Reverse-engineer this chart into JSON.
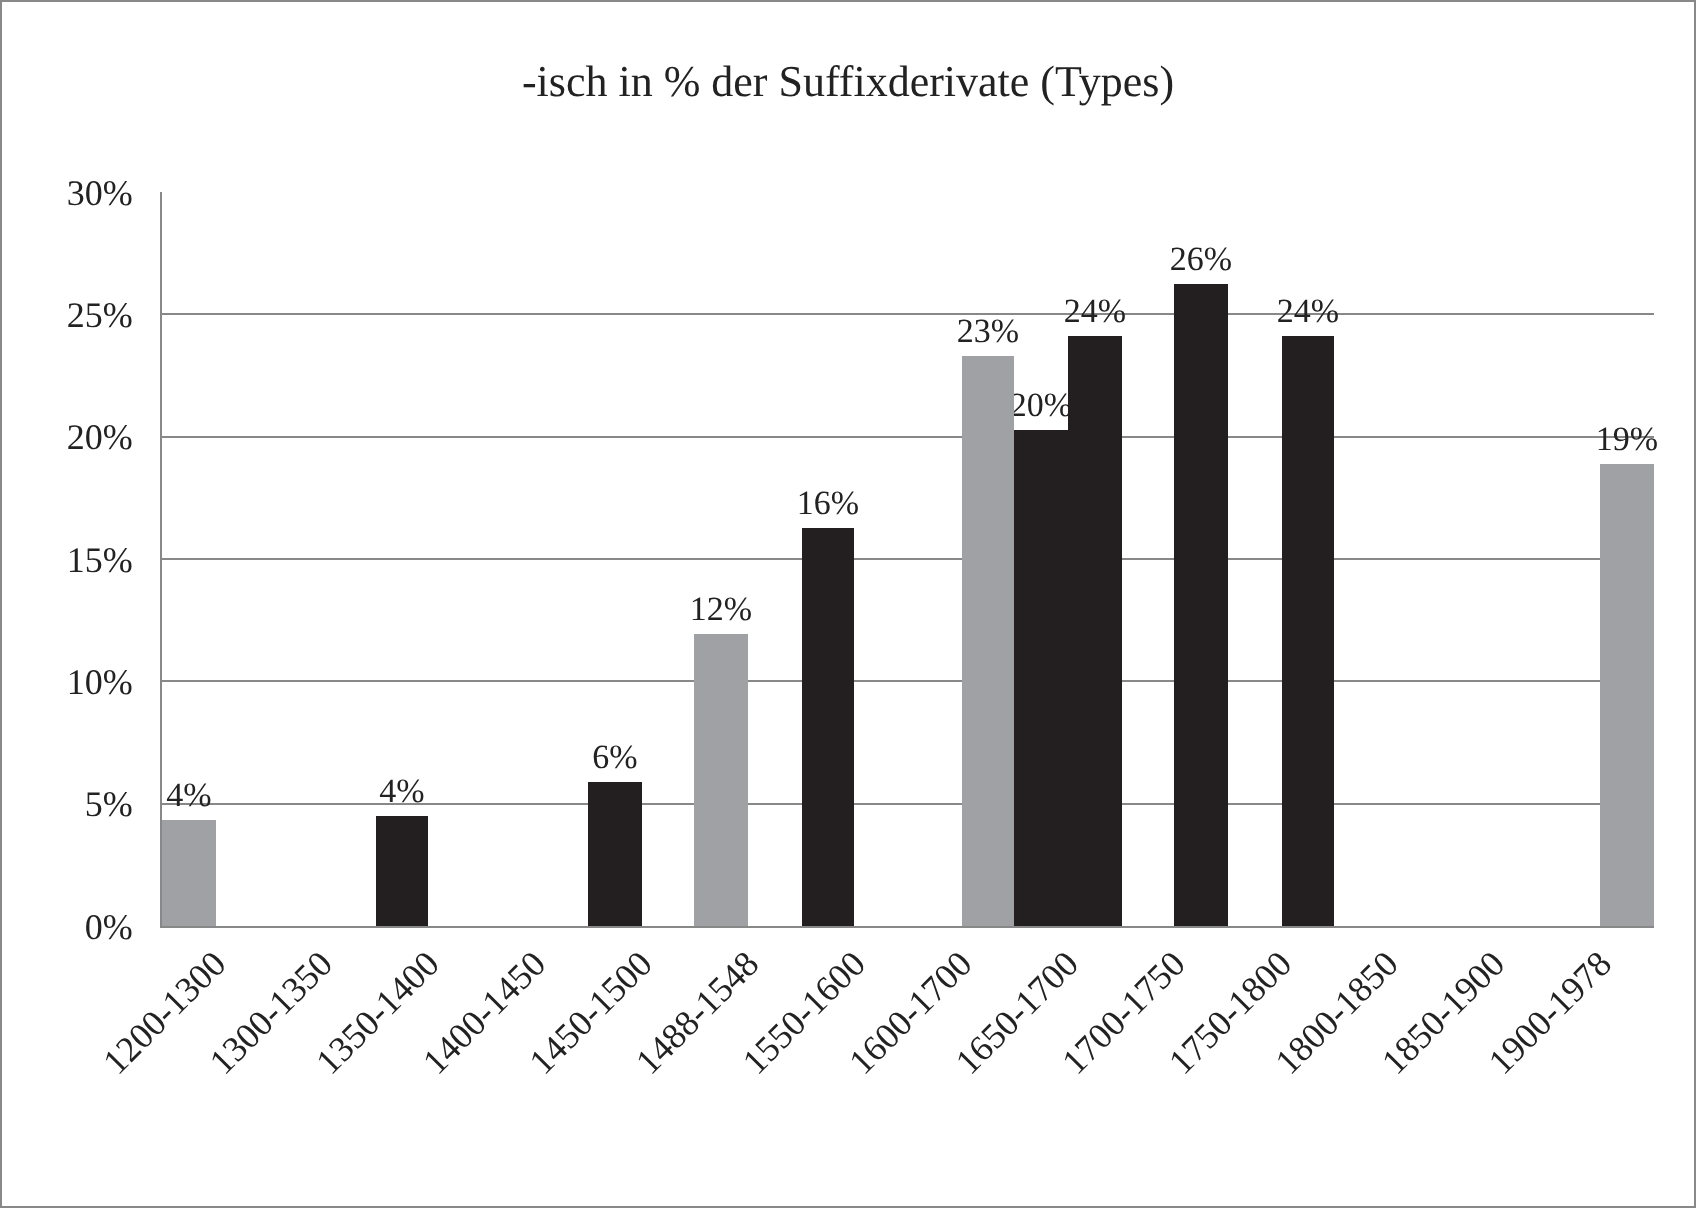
{
  "chart_data": {
    "type": "bar",
    "title": "-isch in % der Suffixderivate (Types)",
    "categories": [
      "1200-1300",
      "1300-1350",
      "1350-1400",
      "1400-1450",
      "1450-1500",
      "1488-1548",
      "1550-1600",
      "1600-1700",
      "1650-1700",
      "1700-1750",
      "1750-1800",
      "1800-1850",
      "1850-1900",
      "1900-1978"
    ],
    "series": [
      {
        "colors": [
          "#a0a1a5",
          null,
          "#231f20",
          null,
          "#231f20",
          "#a0a1a5",
          "#231f20",
          null,
          "#231f20",
          null,
          null,
          null,
          null,
          null
        ],
        "values": [
          4.35,
          null,
          4.5,
          null,
          5.85,
          11.9,
          16.3,
          null,
          20.3,
          null,
          null,
          null,
          null,
          null
        ],
        "value_labels": [
          "4%",
          null,
          "4%",
          null,
          "6%",
          "12%",
          "16%",
          null,
          "20%",
          null,
          null,
          null,
          null,
          null
        ]
      },
      {
        "colors": [
          null,
          null,
          null,
          null,
          null,
          null,
          null,
          "#a0a1a5",
          "#231f20",
          "#231f20",
          "#231f20",
          null,
          null,
          "#a0a1a5"
        ],
        "values": [
          null,
          null,
          null,
          null,
          null,
          null,
          null,
          23.3,
          24.1,
          26.2,
          24.15,
          null,
          null,
          18.85
        ],
        "value_labels": [
          null,
          null,
          null,
          null,
          null,
          null,
          null,
          "23%",
          "24%",
          "26%",
          "24%",
          null,
          null,
          "19%"
        ]
      }
    ],
    "ylim": [
      0,
      30
    ],
    "yticks": [
      {
        "value": 0,
        "label": "0%"
      },
      {
        "value": 5,
        "label": "5%"
      },
      {
        "value": 10,
        "label": "10%"
      },
      {
        "value": 15,
        "label": "15%"
      },
      {
        "value": 20,
        "label": "20%"
      },
      {
        "value": 25,
        "label": "25%"
      },
      {
        "value": 30,
        "label": "30%"
      }
    ],
    "grid": "y"
  }
}
